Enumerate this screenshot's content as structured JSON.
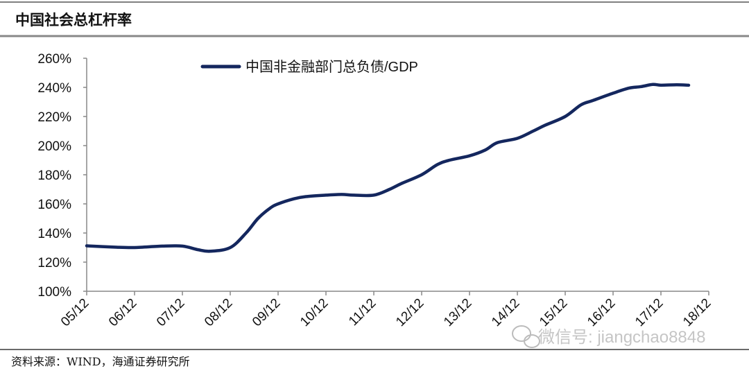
{
  "header": {
    "title": "中国社会总杠杆率"
  },
  "footer": {
    "source": "资料来源：WIND，海通证券研究所"
  },
  "watermark": {
    "text": "微信号: jiangchao8848",
    "icon": "wechat-icon"
  },
  "chart_data": {
    "type": "line",
    "title": "中国社会总杠杆率",
    "xlabel": "",
    "ylabel": "",
    "ylim": [
      100,
      260
    ],
    "yticks": [
      100,
      120,
      140,
      160,
      180,
      200,
      220,
      240,
      260
    ],
    "ytick_labels": [
      "100%",
      "120%",
      "140%",
      "160%",
      "180%",
      "200%",
      "220%",
      "240%",
      "260%"
    ],
    "xlim": [
      2005.92,
      2018.92
    ],
    "xticks": [
      2005.92,
      2006.92,
      2007.92,
      2008.92,
      2009.92,
      2010.92,
      2011.92,
      2012.92,
      2013.92,
      2014.92,
      2015.92,
      2016.92,
      2017.92,
      2018.92
    ],
    "xtick_labels": [
      "05/12",
      "06/12",
      "07/12",
      "08/12",
      "09/12",
      "10/12",
      "11/12",
      "12/12",
      "13/12",
      "14/12",
      "15/12",
      "16/12",
      "17/12",
      "18/12"
    ],
    "grid": false,
    "legend_position": "top-center",
    "series": [
      {
        "name": "中国非金融部门总负债/GDP",
        "color": "#14275e",
        "x": [
          2005.92,
          2006.5,
          2006.92,
          2007.5,
          2007.92,
          2008.25,
          2008.5,
          2008.92,
          2009.25,
          2009.5,
          2009.75,
          2009.92,
          2010.25,
          2010.5,
          2010.92,
          2011.25,
          2011.5,
          2011.92,
          2012.25,
          2012.5,
          2012.92,
          2013.25,
          2013.5,
          2013.92,
          2014.25,
          2014.5,
          2014.92,
          2015.25,
          2015.5,
          2015.92,
          2016.25,
          2016.5,
          2016.92,
          2017.25,
          2017.5,
          2017.75,
          2017.92,
          2018.25,
          2018.5
        ],
        "values": [
          131.2,
          130.3,
          130,
          131,
          131,
          128.5,
          127.5,
          130,
          140,
          150,
          157,
          160,
          163.5,
          165,
          166,
          166.5,
          166,
          166,
          170,
          174,
          180,
          187,
          190,
          193,
          197,
          202,
          205,
          210,
          214,
          220,
          228,
          231,
          236,
          239.5,
          240.5,
          242,
          241.5,
          241.8,
          241.5
        ]
      }
    ]
  }
}
